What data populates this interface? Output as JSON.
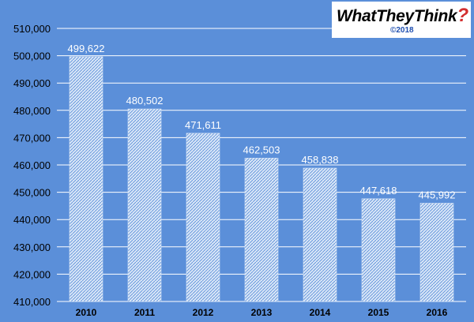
{
  "logo": {
    "text": "WhatTheyThink",
    "mark": "?",
    "copyright": "©2018"
  },
  "colors": {
    "background": "#5b8fd9",
    "bar": "#d9e6f7",
    "bar_hatch": "#5b8fd9",
    "grid": "#ffffff",
    "axis_text": "#000000",
    "label_text": "#ffffff"
  },
  "chart_data": {
    "type": "bar",
    "categories": [
      "2010",
      "2011",
      "2012",
      "2013",
      "2014",
      "2015",
      "2016"
    ],
    "values": [
      499622,
      480502,
      471611,
      462503,
      458838,
      447618,
      445992
    ],
    "data_labels": [
      "499,622",
      "480,502",
      "471,611",
      "462,503",
      "458,838",
      "447,618",
      "445,992"
    ],
    "title": "",
    "xlabel": "",
    "ylabel": "",
    "ylim": [
      410000,
      510000
    ],
    "yticks": [
      410000,
      420000,
      430000,
      440000,
      450000,
      460000,
      470000,
      480000,
      490000,
      500000,
      510000
    ],
    "ytick_labels": [
      "410,000",
      "420,000",
      "430,000",
      "440,000",
      "450,000",
      "460,000",
      "470,000",
      "480,000",
      "490,000",
      "500,000",
      "510,000"
    ],
    "grid": true,
    "legend": "none"
  }
}
